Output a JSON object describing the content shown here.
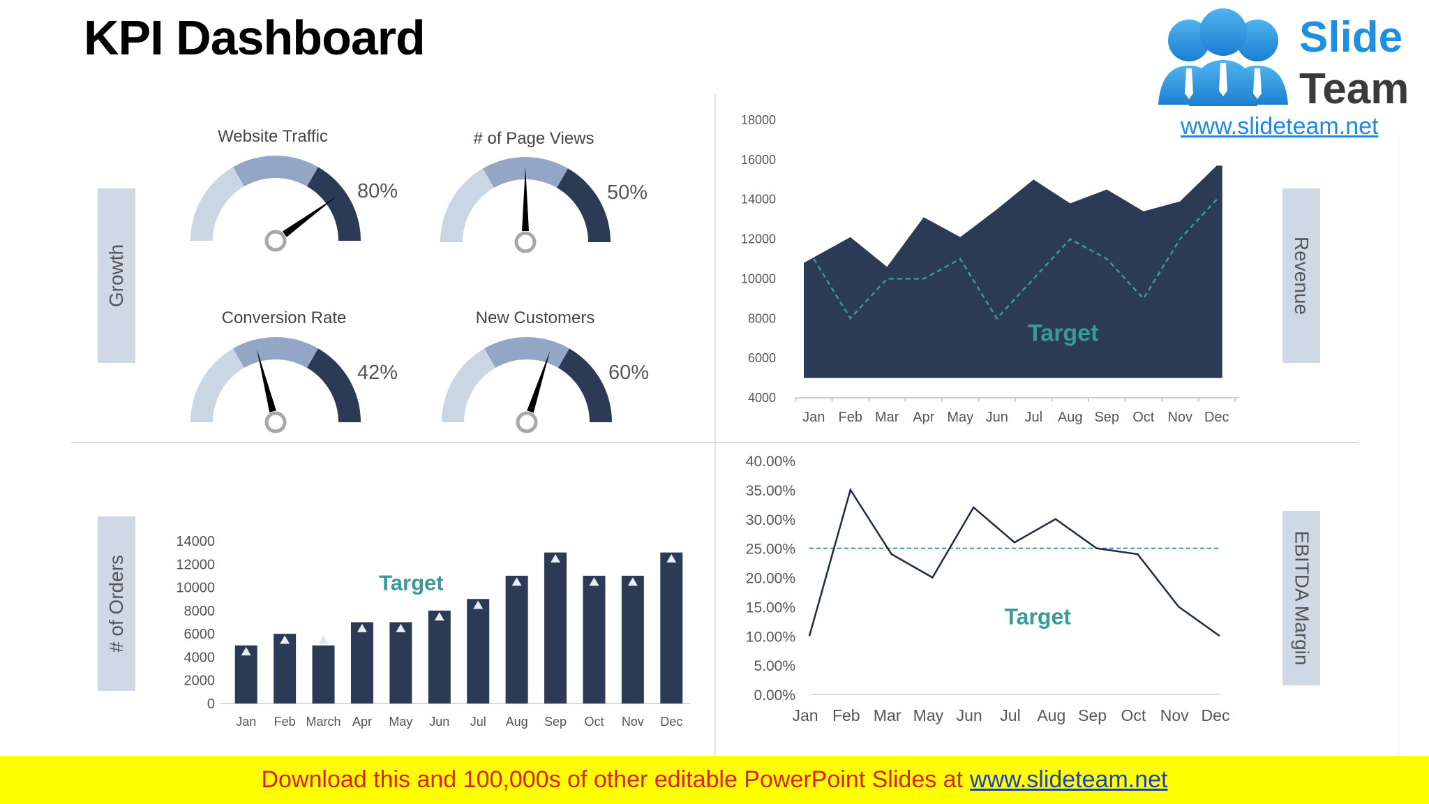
{
  "page": {
    "title": "KPI Dashboard"
  },
  "logo": {
    "word1": "Slide",
    "word2": "Team",
    "url": "www.slideteam.net"
  },
  "colors": {
    "navy": "#2b3a55",
    "mid": "#94a6c6",
    "light": "#cbd6e4",
    "target": "#3a9a9a",
    "label_bg": "#cfd9e6",
    "banner_bg": "#ffff00",
    "banner_text": "#e02020"
  },
  "side_labels": {
    "growth": "Growth",
    "revenue": "Revenue",
    "orders": "# of Orders",
    "ebitda": "EBITDA Margin"
  },
  "gauges": [
    {
      "label": "Website Traffic",
      "value": "80%",
      "pct": 80
    },
    {
      "label": "# of Page Views",
      "value": "50%",
      "pct": 50
    },
    {
      "label": "Conversion Rate",
      "value": "42%",
      "pct": 42
    },
    {
      "label": "New Customers",
      "value": "60%",
      "pct": 60
    }
  ],
  "chart_data": [
    {
      "type": "area",
      "ylabel_side": "Revenue",
      "categories": [
        "Jan",
        "Feb",
        "Mar",
        "Apr",
        "May",
        "Jun",
        "Jul",
        "Aug",
        "Sep",
        "Oct",
        "Nov",
        "Dec"
      ],
      "yticks": [
        "4000",
        "6000",
        "8000",
        "10000",
        "12000",
        "14000",
        "16000",
        "18000"
      ],
      "ylim": [
        4000,
        18000
      ],
      "series": [
        {
          "values": [
            10800,
            12100,
            10600,
            13100,
            12100,
            13500,
            15000,
            13800,
            14500,
            13400,
            13900,
            15700
          ]
        },
        {
          "name": "Target",
          "values": [
            11000,
            8000,
            10000,
            10000,
            11000,
            8000,
            10000,
            12000,
            11000,
            9000,
            12000,
            14000
          ]
        }
      ],
      "annotation": "Target"
    },
    {
      "type": "bar",
      "ylabel_side": "# of Orders",
      "categories": [
        "Jan",
        "Feb",
        "March",
        "Apr",
        "May",
        "Jun",
        "Jul",
        "Aug",
        "Sep",
        "Oct",
        "Nov",
        "Dec"
      ],
      "yticks": [
        "0",
        "2000",
        "4000",
        "6000",
        "8000",
        "10000",
        "12000",
        "14000"
      ],
      "ylim": [
        0,
        14000
      ],
      "series": [
        {
          "values": [
            5000,
            6000,
            5000,
            7000,
            7000,
            8000,
            9000,
            11000,
            13000,
            11000,
            11000,
            13000
          ]
        },
        {
          "name": "Target",
          "values": [
            4500,
            5500,
            5500,
            6500,
            6500,
            7500,
            8500,
            10500,
            12500,
            10500,
            10500,
            12500
          ]
        }
      ],
      "annotation": "Target"
    },
    {
      "type": "line",
      "ylabel_side": "EBITDA Margin",
      "categories": [
        "Jan",
        "Feb",
        "Mar",
        "May",
        "Jun",
        "Jul",
        "Aug",
        "Sep",
        "Oct",
        "Nov",
        "Dec"
      ],
      "yticks": [
        "0.00%",
        "5.00%",
        "10.00%",
        "15.00%",
        "20.00%",
        "25.00%",
        "30.00%",
        "35.00%",
        "40.00%"
      ],
      "ylim": [
        0,
        40
      ],
      "series": [
        {
          "values": [
            10,
            35,
            24,
            20,
            32,
            26,
            30,
            25,
            24,
            15,
            10
          ]
        },
        {
          "name": "Target",
          "values": [
            25,
            25,
            25,
            25,
            25,
            25,
            25,
            25,
            25,
            25,
            25
          ]
        }
      ],
      "annotation": "Target"
    }
  ],
  "banner": {
    "text": "Download this and 100,000s of other editable PowerPoint Slides at",
    "link": "www.slideteam.net"
  }
}
